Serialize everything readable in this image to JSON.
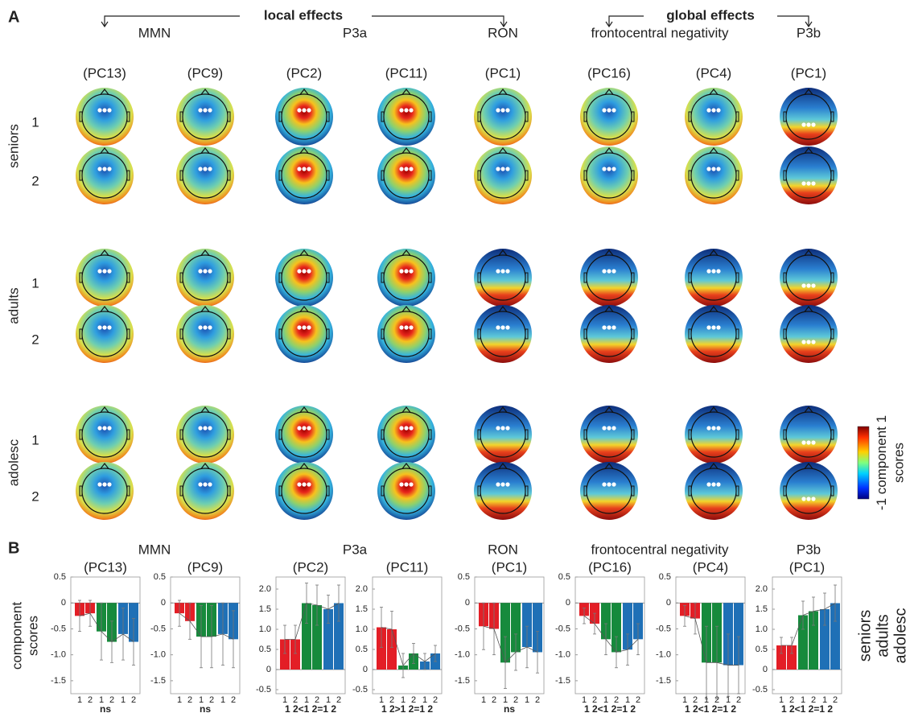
{
  "panel_a": {
    "label": "A",
    "local_effects": "local effects",
    "global_effects": "global effects",
    "components": [
      "MMN",
      "P3a",
      "RON",
      "frontocentral negativity",
      "P3b"
    ],
    "pcs": [
      "(PC13)",
      "(PC9)",
      "(PC2)",
      "(PC11)",
      "(PC1)",
      "(PC16)",
      "(PC4)",
      "(PC1)"
    ],
    "groups": [
      "seniors",
      "adults",
      "adolesc"
    ],
    "sessions": [
      "1",
      "2"
    ],
    "colorbar": {
      "clim": [
        -1,
        1
      ],
      "label": [
        "component",
        "scores"
      ]
    }
  },
  "panel_b": {
    "label": "B",
    "components": [
      "MMN",
      "P3a",
      "RON",
      "frontocentral negativity",
      "P3b"
    ],
    "y_label": [
      "component",
      "scores"
    ]
  },
  "chart_data": [
    {
      "type": "bar",
      "title": "(PC13)",
      "categories": [
        "1",
        "2"
      ],
      "ylim": [
        -1.75,
        0.5
      ],
      "yticks": [
        0.5,
        0,
        -0.5,
        {
          "value": -1,
          "label": "-1.0"
        },
        -1.5
      ],
      "annotation": "ns",
      "series": [
        {
          "name": "seniors",
          "color": "#e31e26",
          "values": [
            -0.25,
            -0.2
          ],
          "errors": [
            0.3,
            0.25
          ]
        },
        {
          "name": "adults",
          "color": "#168a3c",
          "values": [
            -0.55,
            -0.75
          ],
          "errors": [
            0.55,
            0.4
          ]
        },
        {
          "name": "adolesc",
          "color": "#1f70b6",
          "values": [
            -0.6,
            -0.75
          ],
          "errors": [
            0.5,
            0.45
          ]
        }
      ]
    },
    {
      "type": "bar",
      "title": "(PC9)",
      "categories": [
        "1",
        "2"
      ],
      "ylim": [
        -1.75,
        0.5
      ],
      "yticks": [
        0.5,
        0,
        -0.5,
        {
          "value": -1,
          "label": "-1.0"
        },
        -1.5
      ],
      "annotation": "ns",
      "series": [
        {
          "name": "seniors",
          "color": "#e31e26",
          "values": [
            -0.2,
            -0.35
          ],
          "errors": [
            0.25,
            0.35
          ]
        },
        {
          "name": "adults",
          "color": "#168a3c",
          "values": [
            -0.65,
            -0.65
          ],
          "errors": [
            0.6,
            0.6
          ]
        },
        {
          "name": "adolesc",
          "color": "#1f70b6",
          "values": [
            -0.6,
            -0.7
          ],
          "errors": [
            0.6,
            0.55
          ]
        }
      ]
    },
    {
      "type": "bar",
      "title": "(PC2)",
      "categories": [
        "1",
        "2"
      ],
      "ylim": [
        -0.6,
        2.3
      ],
      "yticks": [
        {
          "value": 2,
          "label": "2.0"
        },
        1.5,
        {
          "value": 1,
          "label": "1.0"
        },
        0.5,
        0,
        -0.5
      ],
      "annotation": "1 2<1 2=1 2",
      "series": [
        {
          "name": "seniors",
          "color": "#e31e26",
          "values": [
            0.75,
            0.75
          ],
          "errors": [
            0.35,
            0.35
          ]
        },
        {
          "name": "adults",
          "color": "#168a3c",
          "values": [
            1.65,
            1.6
          ],
          "errors": [
            0.5,
            0.5
          ]
        },
        {
          "name": "adolesc",
          "color": "#1f70b6",
          "values": [
            1.5,
            1.65
          ],
          "errors": [
            0.35,
            0.45
          ]
        }
      ]
    },
    {
      "type": "bar",
      "title": "(PC11)",
      "categories": [
        "1",
        "2"
      ],
      "ylim": [
        -0.6,
        2.3
      ],
      "yticks": [
        {
          "value": 2,
          "label": "2.0"
        },
        1.5,
        {
          "value": 1,
          "label": "1.0"
        },
        0.5,
        0,
        -0.5
      ],
      "annotation": "1 2>1 2=1 2",
      "series": [
        {
          "name": "seniors",
          "color": "#e31e26",
          "values": [
            1.05,
            1.0
          ],
          "errors": [
            0.5,
            0.45
          ]
        },
        {
          "name": "adults",
          "color": "#168a3c",
          "values": [
            0.1,
            0.4
          ],
          "errors": [
            0.3,
            0.25
          ]
        },
        {
          "name": "adolesc",
          "color": "#1f70b6",
          "values": [
            0.2,
            0.4
          ],
          "errors": [
            0.2,
            0.2
          ]
        }
      ]
    },
    {
      "type": "bar",
      "title": "(PC1)",
      "categories": [
        "1",
        "2"
      ],
      "ylim": [
        -1.75,
        0.5
      ],
      "yticks": [
        0.5,
        0,
        -0.5,
        {
          "value": -1,
          "label": "-1.0"
        },
        -1.5
      ],
      "annotation": "ns",
      "series": [
        {
          "name": "seniors",
          "color": "#e31e26",
          "values": [
            -0.45,
            -0.5
          ],
          "errors": [
            0.45,
            0.5
          ]
        },
        {
          "name": "adults",
          "color": "#168a3c",
          "values": [
            -1.15,
            -0.95
          ],
          "errors": [
            0.5,
            0.35
          ]
        },
        {
          "name": "adolesc",
          "color": "#1f70b6",
          "values": [
            -0.85,
            -0.95
          ],
          "errors": [
            0.4,
            0.4
          ]
        }
      ]
    },
    {
      "type": "bar",
      "title": "(PC16)",
      "categories": [
        "1",
        "2"
      ],
      "ylim": [
        -1.75,
        0.5
      ],
      "yticks": [
        0.5,
        0,
        -0.5,
        {
          "value": -1,
          "label": "-1.0"
        },
        -1.5
      ],
      "annotation": "1 2<1 2=1 2",
      "series": [
        {
          "name": "seniors",
          "color": "#e31e26",
          "values": [
            -0.25,
            -0.4
          ],
          "errors": [
            0.15,
            0.2
          ]
        },
        {
          "name": "adults",
          "color": "#168a3c",
          "values": [
            -0.7,
            -0.95
          ],
          "errors": [
            0.3,
            0.3
          ]
        },
        {
          "name": "adolesc",
          "color": "#1f70b6",
          "values": [
            -0.9,
            -0.7
          ],
          "errors": [
            0.3,
            0.3
          ]
        }
      ]
    },
    {
      "type": "bar",
      "title": "(PC4)",
      "categories": [
        "1",
        "2"
      ],
      "ylim": [
        -1.75,
        0.5
      ],
      "yticks": [
        0.5,
        0,
        -0.5,
        {
          "value": -1,
          "label": "-1.0"
        },
        -1.5
      ],
      "annotation": "1 2<1 2=1 2",
      "series": [
        {
          "name": "seniors",
          "color": "#e31e26",
          "values": [
            -0.25,
            -0.3
          ],
          "errors": [
            0.2,
            0.3
          ]
        },
        {
          "name": "adults",
          "color": "#168a3c",
          "values": [
            -1.15,
            -1.15
          ],
          "errors": [
            0.7,
            0.7
          ]
        },
        {
          "name": "adolesc",
          "color": "#1f70b6",
          "values": [
            -1.2,
            -1.2
          ],
          "errors": [
            0.6,
            0.55
          ]
        }
      ]
    },
    {
      "type": "bar",
      "title": "(PC1)",
      "categories": [
        "1",
        "2"
      ],
      "ylim": [
        -0.6,
        2.3
      ],
      "yticks": [
        {
          "value": 2,
          "label": "2.0"
        },
        1.5,
        {
          "value": 1,
          "label": "1.0"
        },
        0.5,
        0,
        -0.5
      ],
      "annotation": "1 2<1 2=1 2",
      "series": [
        {
          "name": "seniors",
          "color": "#e31e26",
          "values": [
            0.6,
            0.6
          ],
          "errors": [
            0.2,
            0.2
          ]
        },
        {
          "name": "adults",
          "color": "#168a3c",
          "values": [
            1.35,
            1.45
          ],
          "errors": [
            0.35,
            0.35
          ]
        },
        {
          "name": "adolesc",
          "color": "#1f70b6",
          "values": [
            1.5,
            1.65
          ],
          "errors": [
            0.4,
            0.45
          ]
        }
      ]
    }
  ]
}
